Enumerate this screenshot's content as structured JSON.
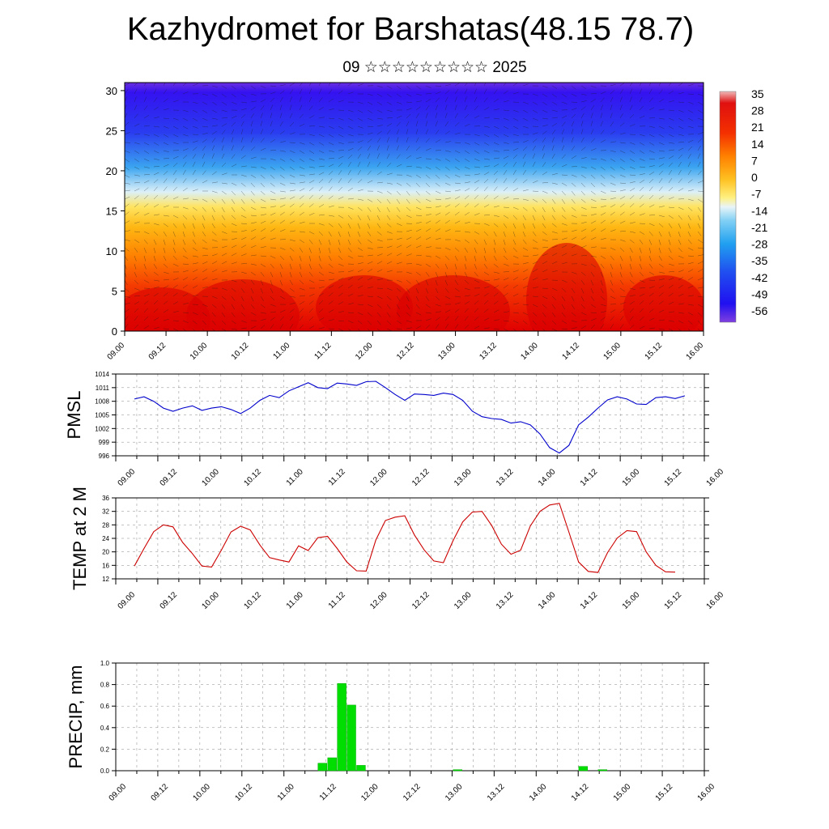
{
  "header": {
    "title": "Kazhydromet for Barshatas(48.15 78.7)",
    "subtitle": "09 ☆☆☆☆☆☆☆☆☆ 2025"
  },
  "time_labels": [
    "09.00",
    "09.12",
    "10.00",
    "10.12",
    "11.00",
    "11.12",
    "12.00",
    "12.12",
    "13.00",
    "13.12",
    "14.00",
    "14.12",
    "15.00",
    "15.12",
    "16.00"
  ],
  "chart_data": [
    {
      "type": "heatmap",
      "name": "temperature cross-section",
      "y_ticks": [
        0,
        5,
        10,
        15,
        20,
        25,
        30
      ],
      "ylim": [
        0,
        31
      ],
      "colorbar_labels": [
        "35",
        "28",
        "21",
        "14",
        "7",
        "0",
        "-7",
        "-14",
        "-21",
        "-28",
        "-35",
        "-42",
        "-49",
        "-56"
      ],
      "colors": {
        "hot": "#e00000",
        "warm": "#ff9a00",
        "mild": "#ffe65a",
        "cold": "#38b4f0",
        "deep": "#1a10f0",
        "top": "#6030e0"
      }
    },
    {
      "type": "line",
      "ylabel": "PMSL",
      "ylim": [
        996,
        1014
      ],
      "y_ticks": [
        996,
        999,
        1002,
        1005,
        1008,
        1011,
        1014
      ],
      "color": "#0000cc",
      "values": [
        1008.5,
        1009,
        1008,
        1006.5,
        1005.8,
        1006.5,
        1007,
        1006,
        1006.5,
        1006.8,
        1006.2,
        1005.3,
        1006.5,
        1008.2,
        1009.3,
        1008.8,
        1010.3,
        1011.2,
        1012.1,
        1011,
        1010.8,
        1012,
        1011.8,
        1011.5,
        1012.3,
        1012.4,
        1011,
        1009.5,
        1008.2,
        1009.6,
        1009.5,
        1009.3,
        1009.8,
        1009.5,
        1008.2,
        1005.8,
        1004.6,
        1004.2,
        1004,
        1003.2,
        1003.5,
        1002.8,
        1000.8,
        997.8,
        996.6,
        998.3,
        1002.8,
        1004.5,
        1006.5,
        1008.3,
        1009,
        1008.5,
        1007.4,
        1007.3,
        1008.8,
        1009,
        1008.6,
        1009.2
      ]
    },
    {
      "type": "line",
      "ylabel": "TEMP at 2 M",
      "ylim": [
        12,
        36
      ],
      "y_ticks": [
        12,
        16,
        20,
        24,
        28,
        32,
        36
      ],
      "color": "#cc0000",
      "values": [
        15.8,
        21,
        26,
        28,
        27.4,
        22.8,
        19.5,
        15.8,
        15.5,
        20.5,
        25.9,
        27.6,
        26.5,
        22,
        18.3,
        17.6,
        17,
        21.8,
        20.4,
        24.2,
        24.6,
        21,
        17,
        14.4,
        14.3,
        23.5,
        29.3,
        30.3,
        30.7,
        25,
        20.6,
        17.3,
        16.8,
        23.3,
        28.9,
        31.8,
        32,
        27.8,
        22.3,
        19.3,
        20.5,
        27.7,
        32,
        33.9,
        34.4,
        25.8,
        17,
        14.2,
        13.9,
        19.8,
        24.1,
        26.3,
        26,
        20,
        16,
        14.1,
        14
      ]
    },
    {
      "type": "bar",
      "ylabel": "PRECIP, mm",
      "ylim": [
        0,
        1.0
      ],
      "y_ticks": [
        "0.0",
        "0.2",
        "0.4",
        "0.6",
        "0.8",
        "1.0"
      ],
      "color": "#00dd00",
      "bars": [
        {
          "t": 17,
          "v": 0.07
        },
        {
          "t": 18,
          "v": 0.12
        },
        {
          "t": 19,
          "v": 0.81
        },
        {
          "t": 20,
          "v": 0.61
        },
        {
          "t": 21,
          "v": 0.05
        },
        {
          "t": 31,
          "v": 0.01
        },
        {
          "t": 44,
          "v": 0.04
        },
        {
          "t": 46,
          "v": 0.01
        }
      ]
    }
  ]
}
